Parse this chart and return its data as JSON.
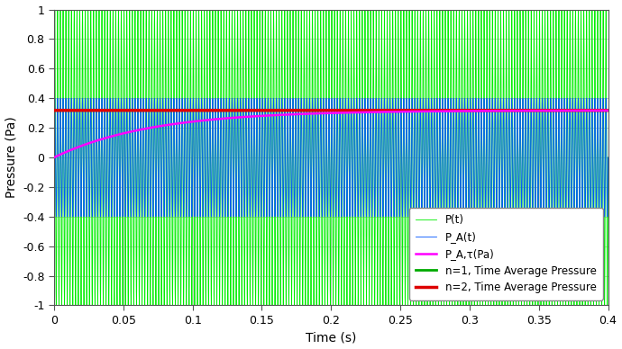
{
  "title": "",
  "xlabel": "Time (s)",
  "ylabel": "Pressure (Pa)",
  "xlim": [
    0,
    0.4
  ],
  "ylim": [
    -1,
    1
  ],
  "yticks": [
    -1,
    -0.8,
    -0.6,
    -0.4,
    -0.2,
    0,
    0.2,
    0.4,
    0.6,
    0.8,
    1
  ],
  "xticks": [
    0,
    0.05,
    0.1,
    0.15,
    0.2,
    0.25,
    0.3,
    0.35,
    0.4
  ],
  "freq_Pt": 500,
  "freq_PAt": 500,
  "amplitude_Pt": 1.0,
  "amplitude_PAt": 0.4,
  "t_max": 0.4,
  "pa_tau_asymptote": 0.3183,
  "pa_tau_rise": 0.07,
  "n1_tavg": 0.3183,
  "n2_tavg": 0.3183,
  "colors": {
    "Pt": "#00ee00",
    "PAt": "#0055ff",
    "PA_tau": "#ff00ff",
    "n1_tavg": "#00aa00",
    "n2_tavg": "#dd0000"
  },
  "legend_labels": [
    "P(t)",
    "P_A(t)",
    "P_A,τ(Pa)",
    "n=1, Time Average Pressure",
    "n=2, Time Average Pressure"
  ],
  "background_color": "#ffffff",
  "grid_color": "#cccccc"
}
